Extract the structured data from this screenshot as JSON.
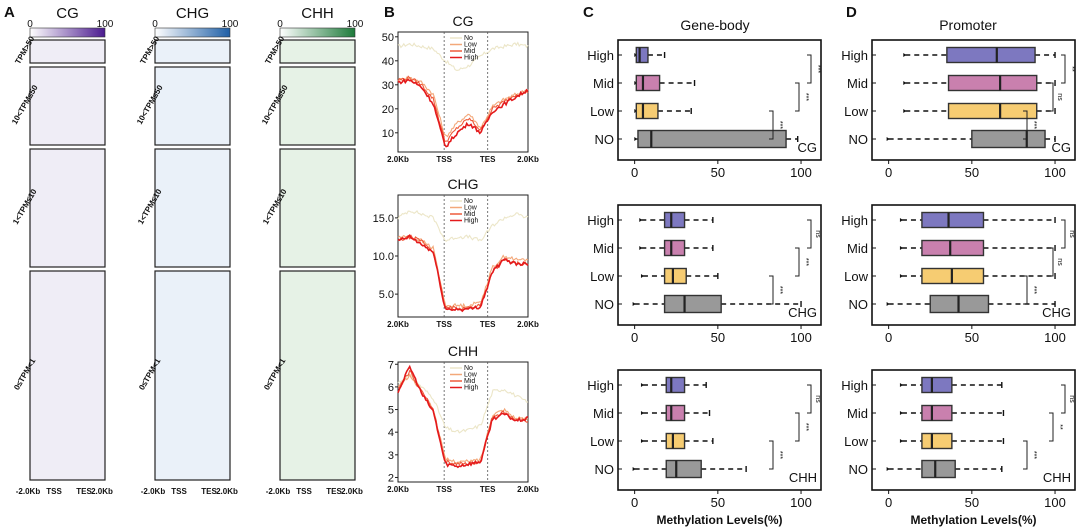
{
  "panels": {
    "A": "A",
    "B": "B",
    "C": "C",
    "D": "D"
  },
  "heatmap": {
    "columns": [
      {
        "title": "CG",
        "color": "#4b1b8f"
      },
      {
        "title": "CHG",
        "color": "#1f5fa6"
      },
      {
        "title": "CHH",
        "color": "#1d7a3a"
      }
    ],
    "scale_min": "0",
    "scale_max": "100",
    "row_labels": [
      "TPM>50",
      "10<TPM≤50",
      "1<TPM≤10",
      "0≤TPM<1"
    ],
    "axis_ticks": [
      "-2.0Kb",
      "TSS",
      "TES",
      "2.0Kb"
    ]
  },
  "metaplot_legend": [
    "No",
    "Low",
    "Mid",
    "High"
  ],
  "metaplot_colors": {
    "No": "#ece6c8",
    "Low": "#f3a87a",
    "Mid": "#ee5a3a",
    "High": "#e41a1c"
  },
  "box_categories": [
    "High",
    "Mid",
    "Low",
    "NO"
  ],
  "box_colors": {
    "High": "#7d78c0",
    "Mid": "#c980ae",
    "Low": "#f6cc72",
    "NO": "#999999"
  },
  "box_x_ticks": [
    "0",
    "50",
    "100"
  ],
  "gene_body_title": "Gene-body",
  "promoter_title": "Promoter",
  "x_axis_label": "Methylation Levels(%)",
  "chart_data": [
    {
      "type": "line",
      "panel": "B",
      "context": "CG",
      "x_ticks": [
        "2.0Kb",
        "TSS",
        "TES",
        "2.0Kb"
      ],
      "ylim": [
        2,
        52
      ],
      "y_ticks": [
        10,
        20,
        30,
        40,
        50
      ],
      "series": [
        {
          "name": "No",
          "values": [
            46,
            47,
            46,
            45,
            40,
            36,
            38,
            42,
            45,
            46,
            47,
            46
          ]
        },
        {
          "name": "Low",
          "values": [
            32,
            33,
            31,
            26,
            8,
            14,
            18,
            12,
            21,
            24,
            26,
            28
          ]
        },
        {
          "name": "Mid",
          "values": [
            32,
            33,
            30,
            24,
            6,
            12,
            16,
            11,
            20,
            23,
            26,
            27
          ]
        },
        {
          "name": "High",
          "values": [
            31,
            32,
            29,
            22,
            4,
            10,
            14,
            10,
            19,
            22,
            25,
            28
          ]
        }
      ]
    },
    {
      "type": "line",
      "panel": "B",
      "context": "CHG",
      "x_ticks": [
        "2.0Kb",
        "TSS",
        "TES",
        "2.0Kb"
      ],
      "ylim": [
        2,
        18
      ],
      "y_ticks": [
        5.0,
        10.0,
        15.0
      ],
      "series": [
        {
          "name": "No",
          "values": [
            15,
            16,
            15.5,
            15,
            12,
            12.5,
            12.5,
            12,
            14,
            15,
            15.5,
            15
          ]
        },
        {
          "name": "Low",
          "values": [
            12.5,
            12.5,
            12,
            11,
            3.5,
            3.5,
            3.5,
            4,
            8.5,
            10,
            9.5,
            9.5
          ]
        },
        {
          "name": "Mid",
          "values": [
            12,
            12.5,
            12,
            10.5,
            3.2,
            3.2,
            3.2,
            3.6,
            8,
            9.5,
            9,
            9
          ]
        },
        {
          "name": "High",
          "values": [
            12,
            12.5,
            11.5,
            10.5,
            3,
            3,
            3,
            3.4,
            8,
            9.5,
            9,
            9
          ]
        }
      ]
    },
    {
      "type": "line",
      "panel": "B",
      "context": "CHH",
      "x_ticks": [
        "2.0Kb",
        "TSS",
        "TES",
        "2.0Kb"
      ],
      "ylim": [
        1.8,
        7.1
      ],
      "y_ticks": [
        2,
        3,
        4,
        5,
        6,
        7
      ],
      "series": [
        {
          "name": "No",
          "values": [
            6.2,
            6.5,
            6.0,
            5.5,
            4.2,
            4.0,
            4.1,
            4.3,
            5.8,
            5.9,
            5.6,
            5.3
          ]
        },
        {
          "name": "Low",
          "values": [
            6.0,
            6.5,
            5.8,
            5.0,
            2.8,
            2.7,
            2.7,
            2.8,
            4.8,
            5.0,
            4.6,
            4.6
          ]
        },
        {
          "name": "Mid",
          "values": [
            5.9,
            6.7,
            5.8,
            5.0,
            2.7,
            2.6,
            2.6,
            2.7,
            4.7,
            4.9,
            4.5,
            4.5
          ]
        },
        {
          "name": "High",
          "values": [
            5.8,
            6.9,
            5.7,
            4.9,
            2.6,
            2.5,
            2.6,
            2.7,
            4.6,
            4.8,
            4.5,
            4.6
          ]
        }
      ]
    },
    {
      "type": "boxplot",
      "panel": "C",
      "region": "Gene-body",
      "context": "CG",
      "xlim": [
        -10,
        112
      ],
      "xlabel": "Methylation Levels(%)",
      "boxes": [
        {
          "name": "High",
          "whisker_low": 1,
          "q1": 1,
          "median": 3,
          "q3": 8,
          "whisker_high": 18
        },
        {
          "name": "Mid",
          "whisker_low": 1,
          "q1": 1,
          "median": 5,
          "q3": 15,
          "whisker_high": 36
        },
        {
          "name": "Low",
          "whisker_low": 1,
          "q1": 1,
          "median": 5,
          "q3": 14,
          "whisker_high": 34
        },
        {
          "name": "NO",
          "whisker_low": 1,
          "q1": 2,
          "median": 10,
          "q3": 91,
          "whisker_high": 98
        }
      ],
      "significance": [
        "***",
        "***",
        "***"
      ]
    },
    {
      "type": "boxplot",
      "panel": "C",
      "region": "Gene-body",
      "context": "CHG",
      "xlim": [
        -10,
        112
      ],
      "xlabel": "Methylation Levels(%)",
      "boxes": [
        {
          "name": "High",
          "whisker_low": 4,
          "q1": 18,
          "median": 22,
          "q3": 30,
          "whisker_high": 47
        },
        {
          "name": "Mid",
          "whisker_low": 4,
          "q1": 18,
          "median": 22,
          "q3": 30,
          "whisker_high": 47
        },
        {
          "name": "Low",
          "whisker_low": 5,
          "q1": 18,
          "median": 23,
          "q3": 31,
          "whisker_high": 50
        },
        {
          "name": "NO",
          "whisker_low": 0,
          "q1": 18,
          "median": 30,
          "q3": 52,
          "whisker_high": 100
        }
      ],
      "significance": [
        "ns",
        "***",
        "***"
      ]
    },
    {
      "type": "boxplot",
      "panel": "C",
      "region": "Gene-body",
      "context": "CHH",
      "xlim": [
        -10,
        112
      ],
      "xlabel": "Methylation Levels(%)",
      "boxes": [
        {
          "name": "High",
          "whisker_low": 5,
          "q1": 19,
          "median": 22,
          "q3": 30,
          "whisker_high": 43
        },
        {
          "name": "Mid",
          "whisker_low": 5,
          "q1": 19,
          "median": 22,
          "q3": 30,
          "whisker_high": 45
        },
        {
          "name": "Low",
          "whisker_low": 5,
          "q1": 19,
          "median": 23,
          "q3": 30,
          "whisker_high": 47
        },
        {
          "name": "NO",
          "whisker_low": 0,
          "q1": 19,
          "median": 25,
          "q3": 40,
          "whisker_high": 67
        }
      ],
      "significance": [
        "ns",
        "***",
        "***"
      ]
    },
    {
      "type": "boxplot",
      "panel": "D",
      "region": "Promoter",
      "context": "CG",
      "xlim": [
        -10,
        112
      ],
      "xlabel": "Methylation Levels(%)",
      "boxes": [
        {
          "name": "High",
          "whisker_low": 10,
          "q1": 35,
          "median": 65,
          "q3": 88,
          "whisker_high": 100
        },
        {
          "name": "Mid",
          "whisker_low": 10,
          "q1": 36,
          "median": 67,
          "q3": 89,
          "whisker_high": 100
        },
        {
          "name": "Low",
          "whisker_low": 10,
          "q1": 36,
          "median": 67,
          "q3": 89,
          "whisker_high": 100
        },
        {
          "name": "NO",
          "whisker_low": 0,
          "q1": 50,
          "median": 83,
          "q3": 94,
          "whisker_high": 100
        }
      ],
      "significance": [
        "**",
        "ns",
        "***"
      ]
    },
    {
      "type": "boxplot",
      "panel": "D",
      "region": "Promoter",
      "context": "CHG",
      "xlim": [
        -10,
        112
      ],
      "xlabel": "Methylation Levels(%)",
      "boxes": [
        {
          "name": "High",
          "whisker_low": 8,
          "q1": 20,
          "median": 36,
          "q3": 57,
          "whisker_high": 100
        },
        {
          "name": "Mid",
          "whisker_low": 8,
          "q1": 20,
          "median": 37,
          "q3": 57,
          "whisker_high": 100
        },
        {
          "name": "Low",
          "whisker_low": 8,
          "q1": 20,
          "median": 38,
          "q3": 57,
          "whisker_high": 100
        },
        {
          "name": "NO",
          "whisker_low": 0,
          "q1": 25,
          "median": 42,
          "q3": 60,
          "whisker_high": 100
        }
      ],
      "significance": [
        "ns",
        "ns",
        "***"
      ]
    },
    {
      "type": "boxplot",
      "panel": "D",
      "region": "Promoter",
      "context": "CHH",
      "xlim": [
        -10,
        112
      ],
      "xlabel": "Methylation Levels(%)",
      "boxes": [
        {
          "name": "High",
          "whisker_low": 8,
          "q1": 20,
          "median": 26,
          "q3": 38,
          "whisker_high": 68
        },
        {
          "name": "Mid",
          "whisker_low": 8,
          "q1": 20,
          "median": 26,
          "q3": 38,
          "whisker_high": 69
        },
        {
          "name": "Low",
          "whisker_low": 8,
          "q1": 20,
          "median": 26,
          "q3": 38,
          "whisker_high": 69
        },
        {
          "name": "NO",
          "whisker_low": 0,
          "q1": 20,
          "median": 28,
          "q3": 40,
          "whisker_high": 68
        }
      ],
      "significance": [
        "ns",
        "**",
        "***"
      ]
    }
  ]
}
